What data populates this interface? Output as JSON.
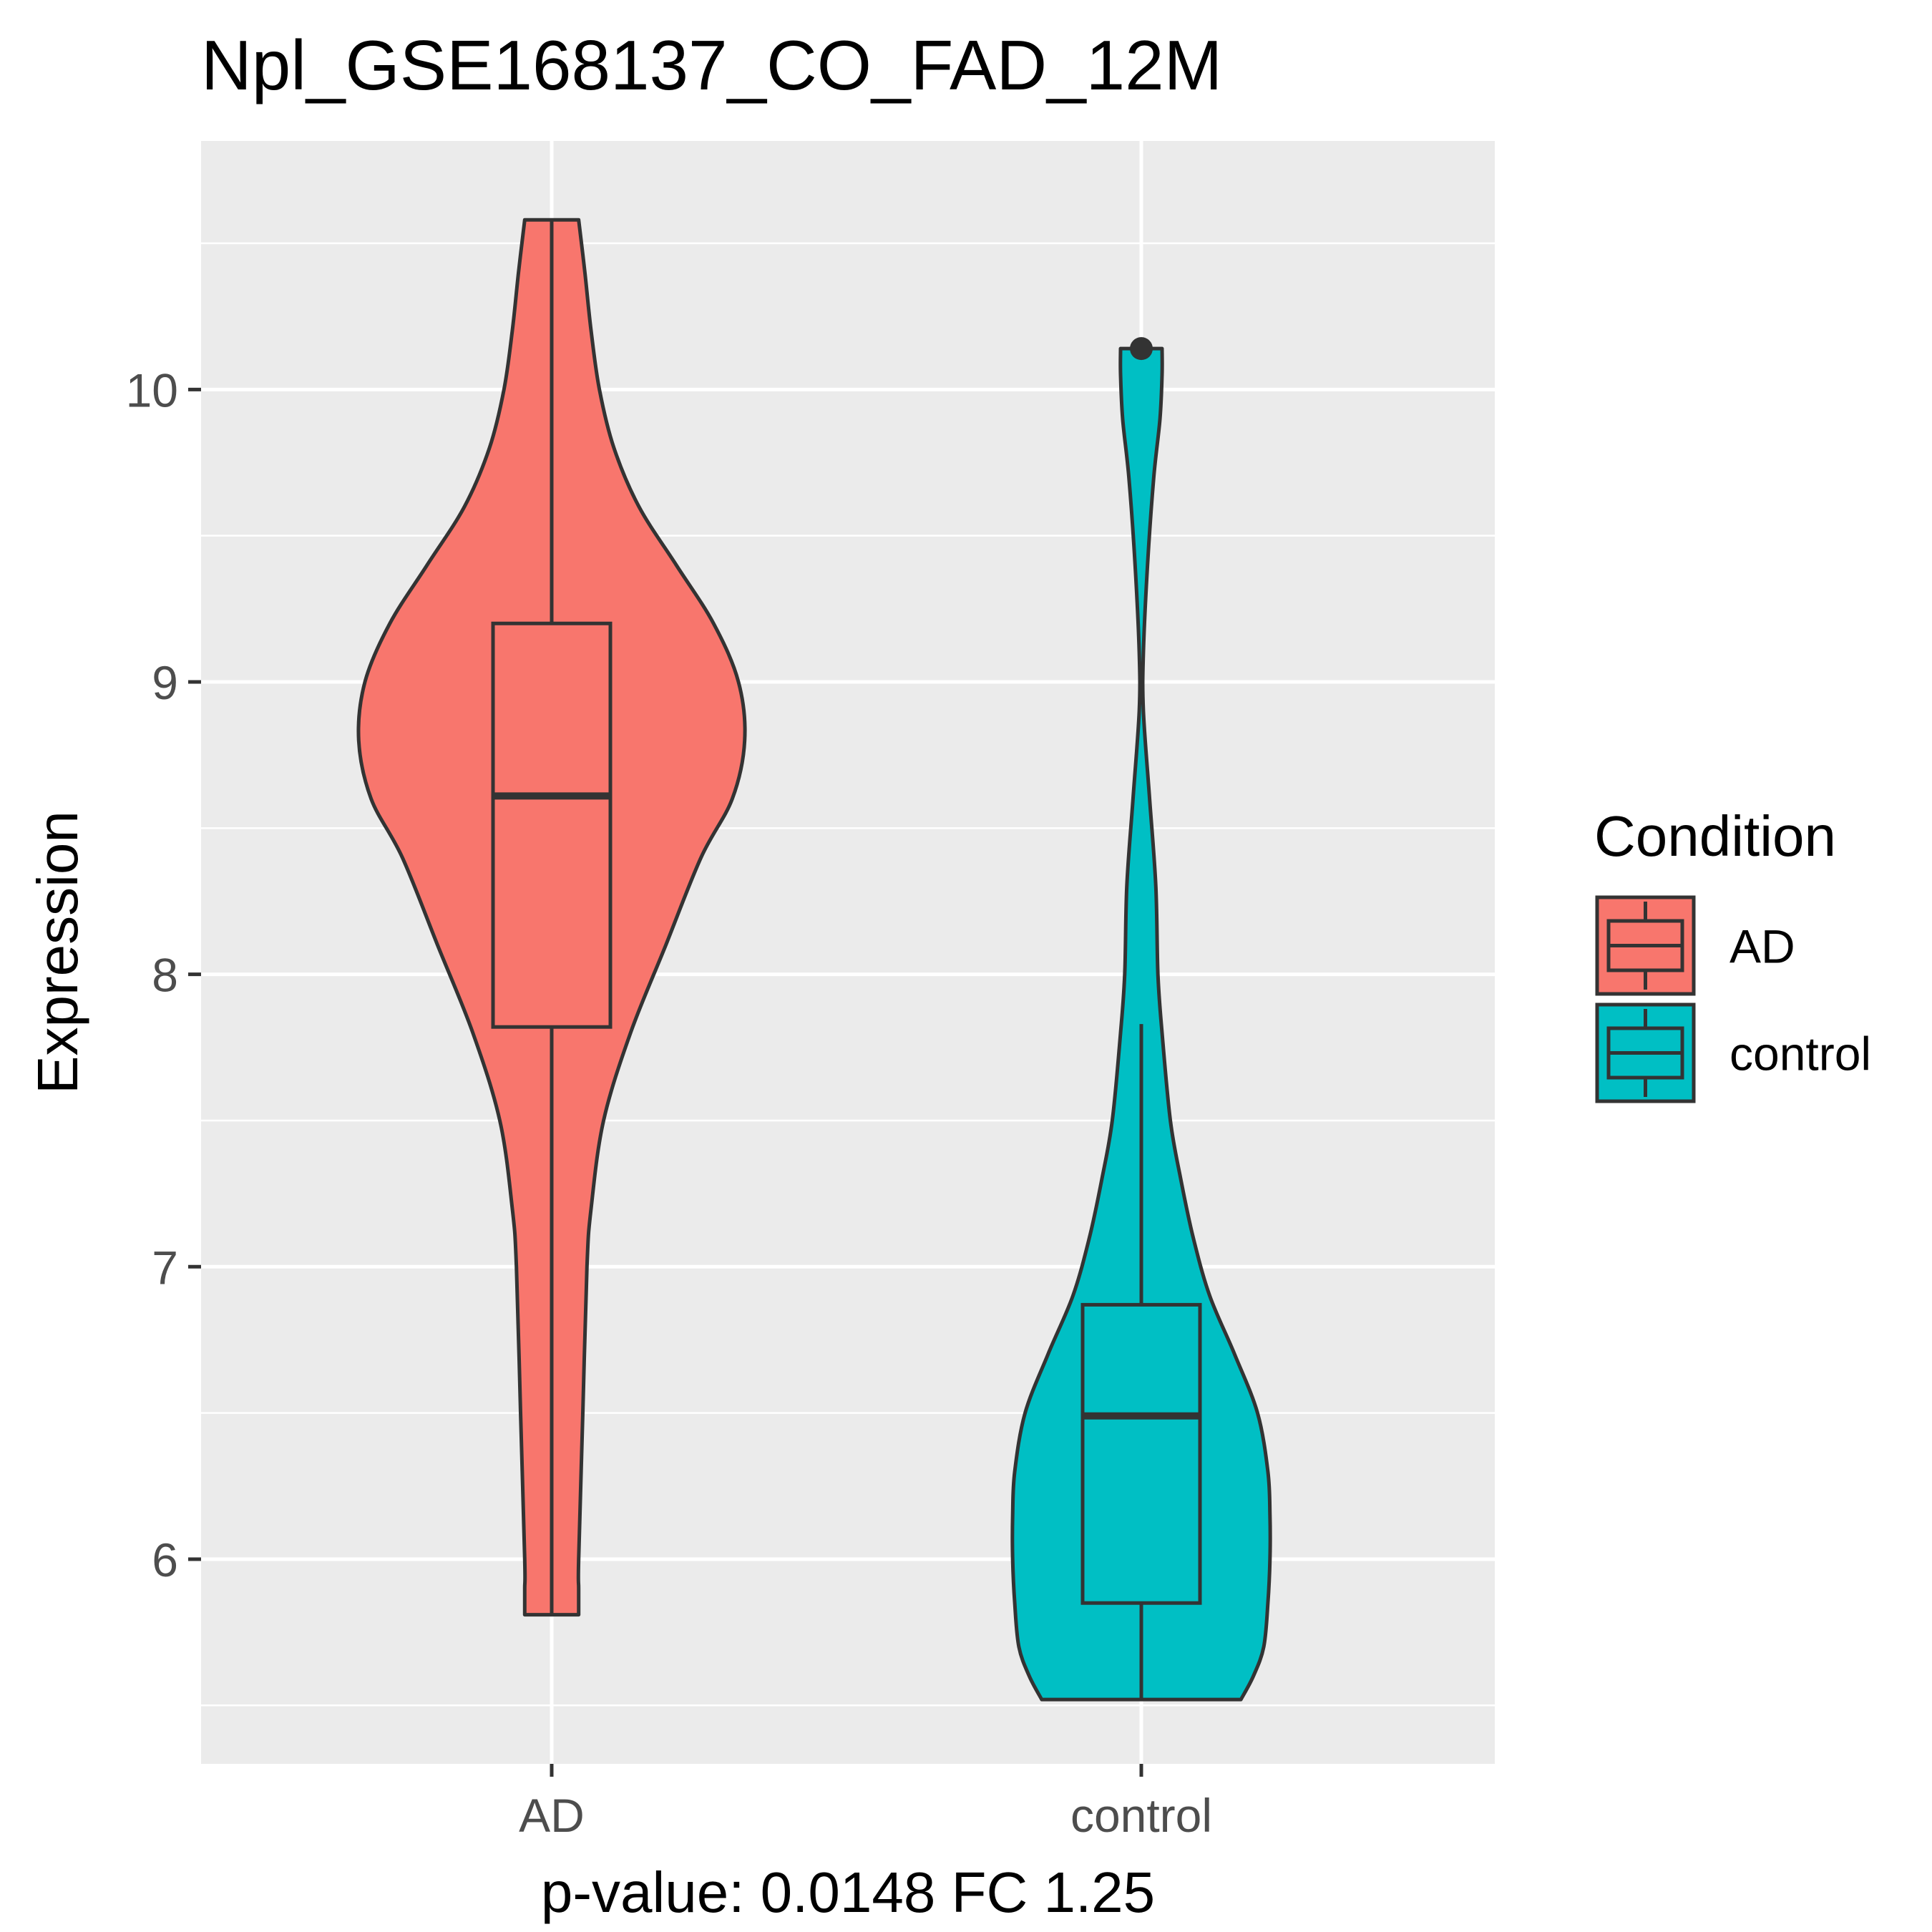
{
  "chart_data": {
    "type": "violin",
    "title": "Npl_GSE168137_CO_FAD_12M",
    "xlabel": "p-value: 0.0148 FC 1.25",
    "ylabel": "Expression",
    "categories": [
      "AD",
      "control"
    ],
    "ylim": [
      5.3,
      10.85
    ],
    "yticks": [
      6,
      7,
      8,
      9,
      10
    ],
    "grid": true,
    "legend": {
      "title": "Condition",
      "position": "right",
      "entries": [
        "AD",
        "control"
      ]
    },
    "series": [
      {
        "name": "AD",
        "color": "#F8766D",
        "box": {
          "min": 5.81,
          "q1": 7.82,
          "median": 8.61,
          "q3": 9.2,
          "max": 10.58
        },
        "outliers": [],
        "density": [
          [
            5.81,
            0.13
          ],
          [
            5.9,
            0.13
          ],
          [
            6.0,
            0.13
          ],
          [
            6.5,
            0.15
          ],
          [
            7.0,
            0.17
          ],
          [
            7.2,
            0.19
          ],
          [
            7.5,
            0.25
          ],
          [
            7.8,
            0.38
          ],
          [
            8.1,
            0.55
          ],
          [
            8.4,
            0.72
          ],
          [
            8.6,
            0.87
          ],
          [
            8.8,
            0.93
          ],
          [
            9.0,
            0.9
          ],
          [
            9.2,
            0.78
          ],
          [
            9.4,
            0.6
          ],
          [
            9.6,
            0.42
          ],
          [
            9.8,
            0.3
          ],
          [
            10.0,
            0.23
          ],
          [
            10.2,
            0.19
          ],
          [
            10.4,
            0.16
          ],
          [
            10.58,
            0.13
          ]
        ]
      },
      {
        "name": "control",
        "color": "#00BFC4",
        "box": {
          "min": 5.52,
          "q1": 5.85,
          "median": 6.49,
          "q3": 6.87,
          "max": 7.83
        },
        "outliers": [
          10.14
        ],
        "density": [
          [
            5.52,
            0.48
          ],
          [
            5.6,
            0.54
          ],
          [
            5.7,
            0.59
          ],
          [
            5.85,
            0.61
          ],
          [
            6.0,
            0.62
          ],
          [
            6.15,
            0.62
          ],
          [
            6.3,
            0.61
          ],
          [
            6.5,
            0.56
          ],
          [
            6.7,
            0.45
          ],
          [
            6.9,
            0.33
          ],
          [
            7.1,
            0.25
          ],
          [
            7.3,
            0.19
          ],
          [
            7.5,
            0.14
          ],
          [
            7.8,
            0.1
          ],
          [
            8.0,
            0.08
          ],
          [
            8.3,
            0.07
          ],
          [
            8.6,
            0.04
          ],
          [
            8.9,
            0.01
          ],
          [
            9.1,
            0.01
          ],
          [
            9.4,
            0.03
          ],
          [
            9.7,
            0.06
          ],
          [
            9.9,
            0.09
          ],
          [
            10.05,
            0.1
          ],
          [
            10.14,
            0.1
          ]
        ]
      }
    ]
  }
}
